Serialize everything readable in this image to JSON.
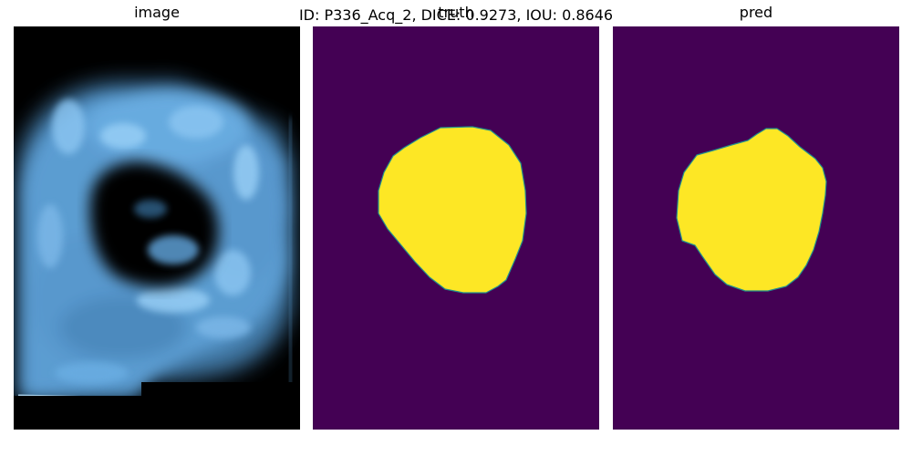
{
  "figure": {
    "suptitle": "ID: P336_Acq_2, DICE: 0.9273, IOU: 0.8646"
  },
  "panels": [
    {
      "title": "image"
    },
    {
      "title": "truth"
    },
    {
      "title": "pred"
    }
  ],
  "colors": {
    "background_mask": "#440154",
    "foreground_mask": "#fde725",
    "mask_edge": "#21918c",
    "ultrasound_tint": "#6fb4e8",
    "ultrasound_dark": "#000000"
  }
}
